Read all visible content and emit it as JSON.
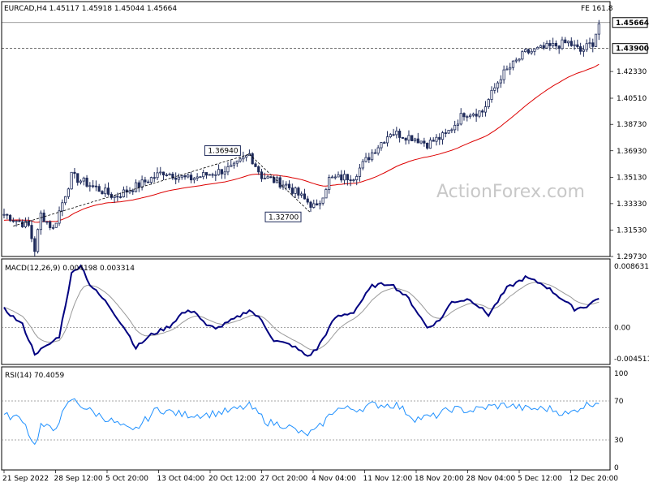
{
  "chart_data": [
    {
      "type": "candlestick",
      "symbol_header": "EURCAD,H4  1.45117 1.45918 1.45044 1.45664",
      "fib_label": "FE 161.8",
      "watermark": "ActionForex.com",
      "ylim": [
        1.2973,
        1.4637
      ],
      "y_ticks": [
        "1.42330",
        "1.40510",
        "1.38730",
        "1.36930",
        "1.35130",
        "1.33330",
        "1.31530",
        "1.29730"
      ],
      "price_tags": [
        {
          "label": "1.45664",
          "value": 1.45664,
          "style": "current"
        },
        {
          "label": "1.43900",
          "value": 1.439,
          "style": "level"
        }
      ],
      "annotations": [
        {
          "label": "1.36940",
          "value": 1.3694,
          "bar": 80
        },
        {
          "label": "1.32700",
          "value": 1.327,
          "bar": 100
        }
      ],
      "anchors": [
        [
          0,
          1.326
        ],
        [
          8,
          1.318
        ],
        [
          10,
          1.302
        ],
        [
          12,
          1.326
        ],
        [
          16,
          1.316
        ],
        [
          22,
          1.352
        ],
        [
          28,
          1.346
        ],
        [
          36,
          1.338
        ],
        [
          44,
          1.346
        ],
        [
          52,
          1.355
        ],
        [
          60,
          1.35
        ],
        [
          68,
          1.354
        ],
        [
          75,
          1.358
        ],
        [
          80,
          1.367
        ],
        [
          84,
          1.352
        ],
        [
          92,
          1.346
        ],
        [
          98,
          1.336
        ],
        [
          102,
          1.33
        ],
        [
          106,
          1.35
        ],
        [
          114,
          1.352
        ],
        [
          120,
          1.368
        ],
        [
          126,
          1.382
        ],
        [
          134,
          1.378
        ],
        [
          138,
          1.374
        ],
        [
          144,
          1.38
        ],
        [
          150,
          1.395
        ],
        [
          156,
          1.396
        ],
        [
          162,
          1.42
        ],
        [
          170,
          1.436
        ],
        [
          178,
          1.44
        ],
        [
          184,
          1.443
        ],
        [
          188,
          1.437
        ],
        [
          192,
          1.443
        ],
        [
          194,
          1.456
        ]
      ],
      "moving_average_color": "#dd0000",
      "candle_color": "#1e2a5a"
    },
    {
      "type": "line",
      "label": "MACD(12,26,9) 0.004198 0.003314",
      "ylim": [
        -0.0048,
        0.0088
      ],
      "y_ticks": [
        "0.008631",
        "0.00",
        "-0.004511"
      ],
      "macd_anchors": [
        [
          0,
          0.0026
        ],
        [
          6,
          0.0004
        ],
        [
          10,
          -0.0036
        ],
        [
          14,
          -0.0026
        ],
        [
          18,
          -0.0012
        ],
        [
          22,
          0.0075
        ],
        [
          25,
          0.0088
        ],
        [
          28,
          0.006
        ],
        [
          34,
          0.0032
        ],
        [
          40,
          -0.0005
        ],
        [
          43,
          -0.0028
        ],
        [
          48,
          -0.001
        ],
        [
          54,
          0.0002
        ],
        [
          58,
          0.002
        ],
        [
          62,
          0.0024
        ],
        [
          66,
          0.0002
        ],
        [
          70,
          0.0
        ],
        [
          76,
          0.0014
        ],
        [
          80,
          0.0025
        ],
        [
          84,
          0.001
        ],
        [
          88,
          -0.0018
        ],
        [
          94,
          -0.0025
        ],
        [
          99,
          -0.004
        ],
        [
          102,
          -0.003
        ],
        [
          108,
          0.0014
        ],
        [
          114,
          0.0022
        ],
        [
          120,
          0.0058
        ],
        [
          126,
          0.0062
        ],
        [
          132,
          0.004
        ],
        [
          138,
          0.0
        ],
        [
          142,
          0.001
        ],
        [
          146,
          0.0036
        ],
        [
          152,
          0.004
        ],
        [
          158,
          0.0018
        ],
        [
          164,
          0.0055
        ],
        [
          170,
          0.007
        ],
        [
          176,
          0.006
        ],
        [
          182,
          0.004
        ],
        [
          186,
          0.0026
        ],
        [
          190,
          0.003
        ],
        [
          194,
          0.0042
        ]
      ],
      "macd_color": "#000080",
      "signal_color": "#999999"
    },
    {
      "type": "line",
      "label": "RSI(14) 70.4059",
      "ylim": [
        0,
        100
      ],
      "y_ticks": [
        "100",
        "70",
        "30",
        "0"
      ],
      "levels": [
        70,
        30
      ],
      "rsi_anchors": [
        [
          0,
          55
        ],
        [
          6,
          52
        ],
        [
          10,
          24
        ],
        [
          12,
          45
        ],
        [
          16,
          40
        ],
        [
          22,
          72
        ],
        [
          28,
          60
        ],
        [
          36,
          48
        ],
        [
          42,
          38
        ],
        [
          50,
          62
        ],
        [
          58,
          56
        ],
        [
          66,
          56
        ],
        [
          74,
          60
        ],
        [
          80,
          65
        ],
        [
          86,
          48
        ],
        [
          92,
          45
        ],
        [
          98,
          35
        ],
        [
          102,
          40
        ],
        [
          108,
          62
        ],
        [
          116,
          62
        ],
        [
          120,
          66
        ],
        [
          128,
          66
        ],
        [
          134,
          52
        ],
        [
          140,
          54
        ],
        [
          146,
          62
        ],
        [
          152,
          60
        ],
        [
          158,
          64
        ],
        [
          164,
          66
        ],
        [
          170,
          62
        ],
        [
          178,
          62
        ],
        [
          184,
          56
        ],
        [
          188,
          64
        ],
        [
          194,
          70
        ]
      ],
      "rsi_color": "#1e90ff",
      "x_ticks": [
        "21 Sep 2022",
        "28 Sep 12:00",
        "5 Oct 20:00",
        "13 Oct 04:00",
        "20 Oct 12:00",
        "27 Oct 20:00",
        "4 Nov 04:00",
        "11 Nov 12:00",
        "18 Nov 20:00",
        "28 Nov 04:00",
        "5 Dec 12:00",
        "12 Dec 20:00"
      ]
    }
  ]
}
